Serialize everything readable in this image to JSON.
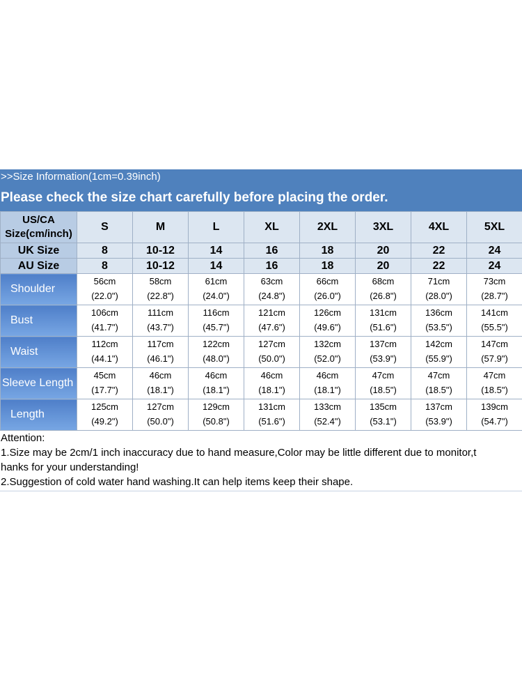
{
  "info_banner": ">>Size Information(1cm=0.39inch)",
  "notice_banner": "Please check the size chart carefully before placing the order.",
  "table": {
    "corner_lines": [
      "US/CA",
      "Size(cm/inch)"
    ],
    "sizes": [
      "S",
      "M",
      "L",
      "XL",
      "2XL",
      "3XL",
      "4XL",
      "5XL"
    ],
    "uk_label": "UK Size",
    "uk_sizes": [
      "8",
      "10-12",
      "14",
      "16",
      "18",
      "20",
      "22",
      "24"
    ],
    "au_label": "AU Size",
    "au_sizes": [
      "8",
      "10-12",
      "14",
      "16",
      "18",
      "20",
      "22",
      "24"
    ],
    "measurements": [
      {
        "label": "Shoulder",
        "cm": [
          "56cm",
          "58cm",
          "61cm",
          "63cm",
          "66cm",
          "68cm",
          "71cm",
          "73cm"
        ],
        "inch": [
          "(22.0\")",
          "(22.8\")",
          "(24.0\")",
          "(24.8\")",
          "(26.0\")",
          "(26.8\")",
          "(28.0\")",
          "(28.7\")"
        ]
      },
      {
        "label": "Bust",
        "cm": [
          "106cm",
          "111cm",
          "116cm",
          "121cm",
          "126cm",
          "131cm",
          "136cm",
          "141cm"
        ],
        "inch": [
          "(41.7\")",
          "(43.7\")",
          "(45.7\")",
          "(47.6\")",
          "(49.6\")",
          "(51.6\")",
          "(53.5\")",
          "(55.5\")"
        ]
      },
      {
        "label": "Waist",
        "cm": [
          "112cm",
          "117cm",
          "122cm",
          "127cm",
          "132cm",
          "137cm",
          "142cm",
          "147cm"
        ],
        "inch": [
          "(44.1\")",
          "(46.1\")",
          "(48.0\")",
          "(50.0\")",
          "(52.0\")",
          "(53.9\")",
          "(55.9\")",
          "(57.9\")"
        ]
      },
      {
        "label": "Sleeve Length",
        "cm": [
          "45cm",
          "46cm",
          "46cm",
          "46cm",
          "46cm",
          "47cm",
          "47cm",
          "47cm"
        ],
        "inch": [
          "(17.7\")",
          "(18.1\")",
          "(18.1\")",
          "(18.1\")",
          "(18.1\")",
          "(18.5\")",
          "(18.5\")",
          "(18.5\")"
        ]
      },
      {
        "label": "Length",
        "cm": [
          "125cm",
          "127cm",
          "129cm",
          "131cm",
          "133cm",
          "135cm",
          "137cm",
          "139cm"
        ],
        "inch": [
          "(49.2\")",
          "(50.0\")",
          "(50.8\")",
          "(51.6\")",
          "(52.4\")",
          "(53.1\")",
          "(53.9\")",
          "(54.7\")"
        ]
      }
    ]
  },
  "notes": [
    "Attention:",
    "1.Size may be 2cm/1 inch inaccuracy due to hand measure,Color may be little different due to monitor,t",
    "hanks for your understanding!",
    "2.Suggestion of cold water hand washing.It can help items keep their shape."
  ],
  "colors": {
    "banner": "#4f81bd",
    "header_cell": "#dce6f1",
    "label_cell": "#5b8fd4",
    "grid_line": "#9fb0c6"
  }
}
